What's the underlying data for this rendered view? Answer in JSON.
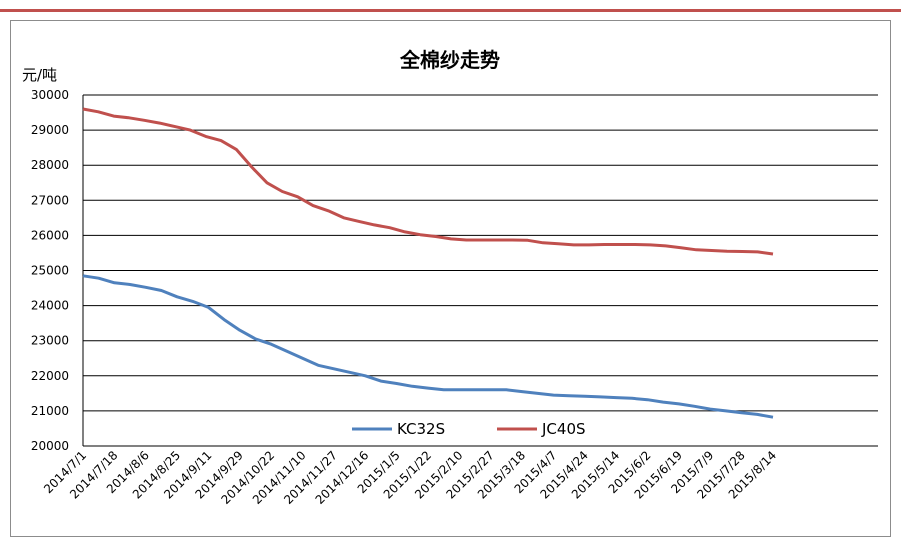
{
  "chart_data": {
    "type": "line",
    "title": "全棉纱走势",
    "ylabel": "元/吨",
    "xlabel": "",
    "ylim": [
      20000,
      30000
    ],
    "yticks": [
      "30000",
      "29000",
      "28000",
      "27000",
      "26000",
      "25000",
      "24000",
      "23000",
      "22000",
      "21000",
      "20000"
    ],
    "x_tick_labels": [
      "2014/7/1",
      "2014/7/18",
      "2014/8/6",
      "2014/8/25",
      "2014/9/11",
      "2014/9/29",
      "2014/10/22",
      "2014/11/10",
      "2014/11/27",
      "2014/12/16",
      "2015/1/5",
      "2015/1/22",
      "2015/2/10",
      "2015/2/27",
      "2015/3/18",
      "2015/4/7",
      "2015/4/24",
      "2015/5/14",
      "2015/6/2",
      "2015/6/19",
      "2015/7/9",
      "2015/7/28",
      "2015/8/14"
    ],
    "grid": "horizontal",
    "legend_position": "inside-bottom",
    "series": [
      {
        "name": "KC32S",
        "color": "#4f81bd",
        "values": [
          24850,
          24780,
          24650,
          24600,
          24520,
          24430,
          24250,
          24120,
          23950,
          23600,
          23300,
          23050,
          22900,
          22700,
          22500,
          22300,
          22200,
          22100,
          22000,
          21850,
          21780,
          21700,
          21650,
          21600,
          21600,
          21600,
          21600,
          21600,
          21550,
          21500,
          21450,
          21430,
          21420,
          21400,
          21380,
          21360,
          21320,
          21250,
          21200,
          21130,
          21050,
          21000,
          20950,
          20900,
          20820
        ]
      },
      {
        "name": "JC40S",
        "color": "#c0504d",
        "values": [
          29600,
          29520,
          29400,
          29350,
          29280,
          29200,
          29100,
          29000,
          28820,
          28700,
          28450,
          27950,
          27500,
          27250,
          27100,
          26850,
          26700,
          26500,
          26400,
          26300,
          26220,
          26100,
          26020,
          25970,
          25900,
          25870,
          25870,
          25870,
          25870,
          25860,
          25790,
          25760,
          25730,
          25730,
          25740,
          25740,
          25740,
          25730,
          25700,
          25650,
          25590,
          25570,
          25550,
          25540,
          25530,
          25470
        ]
      }
    ]
  }
}
